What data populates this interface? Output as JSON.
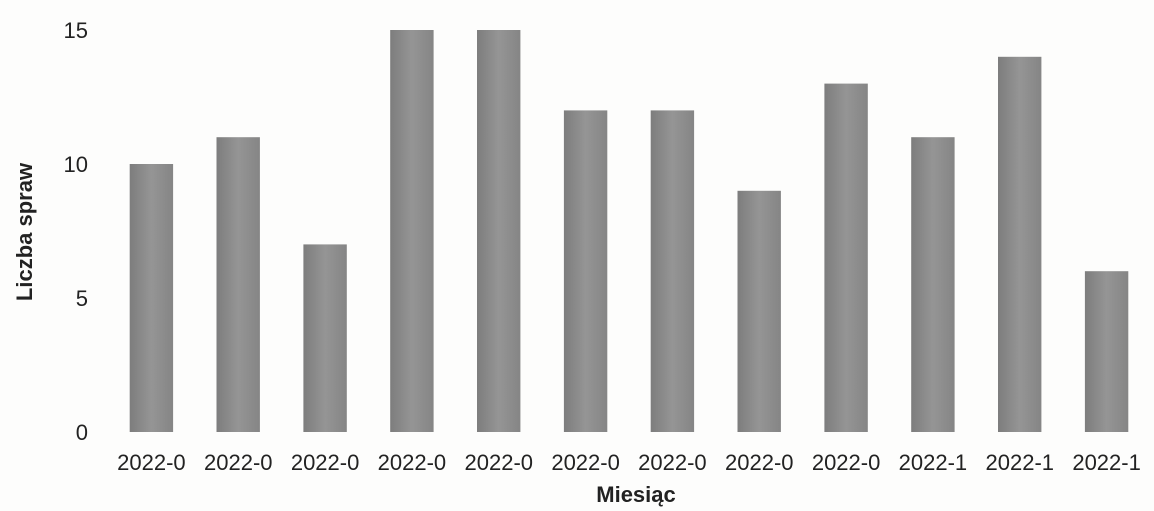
{
  "chart_data": {
    "type": "bar",
    "title": "",
    "xlabel": "Miesiąc",
    "ylabel": "Liczba spraw",
    "categories": [
      "2022-0",
      "2022-0",
      "2022-0",
      "2022-0",
      "2022-0",
      "2022-0",
      "2022-0",
      "2022-0",
      "2022-0",
      "2022-1",
      "2022-1",
      "2022-1"
    ],
    "values": [
      10,
      11,
      7,
      15,
      15,
      12,
      12,
      9,
      13,
      11,
      14,
      6
    ],
    "ylim": [
      0,
      15
    ],
    "yticks": [
      0,
      5,
      10,
      15
    ],
    "grid": false,
    "legend": "none",
    "bar_color": "#8a8a8a"
  }
}
